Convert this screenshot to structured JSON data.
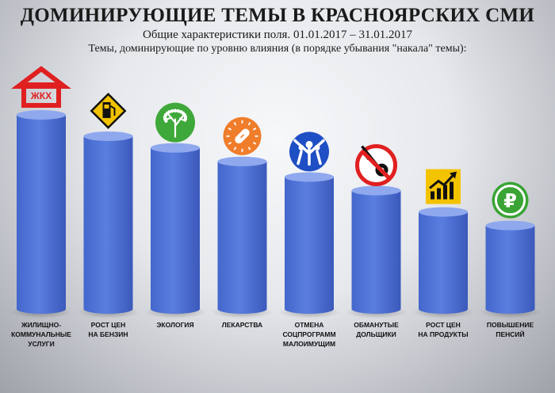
{
  "title": "ДОМИНИРУЮЩИЕ ТЕМЫ В КРАСНОЯРСКИХ СМИ",
  "subtitle": "Общие характеристики поля. 01.01.2017 – 31.01.2017",
  "caption": "Темы, доминирующие по уровню влияния (в порядке убывания \"накала\" темы):",
  "colors": {
    "bar": "#4f72d6",
    "bar_dark": "#3d5cbf",
    "bar_top": "#8fa8ee"
  },
  "chart_data": {
    "type": "bar",
    "categories": [
      "ЖИЛИЩНО-КОММУНАЛЬНЫЕ УСЛУГИ",
      "РОСТ ЦЕН НА БЕНЗИН",
      "ЭКОЛОГИЯ",
      "ЛЕКАРСТВА",
      "ОТМЕНА СОЦПРОГРАММ МАЛОИМУЩИМ",
      "ОБМАНУТЫЕ ДОЛЬЩИКИ",
      "РОСТ ЦЕН НА ПРОДУКТЫ",
      "ПОВЫШЕНИЕ ПЕНСИЙ"
    ],
    "label_lines": [
      [
        "ЖИЛИЩНО-",
        "КОММУНАЛЬНЫЕ",
        "УСЛУГИ"
      ],
      [
        "РОСТ ЦЕН",
        "НА БЕНЗИН"
      ],
      [
        "ЭКОЛОГИЯ"
      ],
      [
        "ЛЕКАРСТВА"
      ],
      [
        "ОТМЕНА",
        "СОЦПРОГРАММ",
        "МАЛОИМУЩИМ"
      ],
      [
        "ОБМАНУТЫЕ",
        "ДОЛЬЩИКИ"
      ],
      [
        "РОСТ ЦЕН",
        "НА ПРОДУКТЫ"
      ],
      [
        "ПОВЫШЕНИЕ",
        "ПЕНСИЙ"
      ]
    ],
    "values": [
      100,
      89,
      83,
      76,
      68,
      61,
      50,
      43
    ],
    "icons": [
      "house-zhkh-icon",
      "fuel-pump-icon",
      "tree-icon",
      "pill-icon",
      "people-icon",
      "no-key-icon",
      "rising-chart-icon",
      "ruble-icon"
    ],
    "icon_text": {
      "house": "ЖКХ",
      "ruble": "₽"
    },
    "ylim": [
      0,
      100
    ],
    "grid": false
  }
}
